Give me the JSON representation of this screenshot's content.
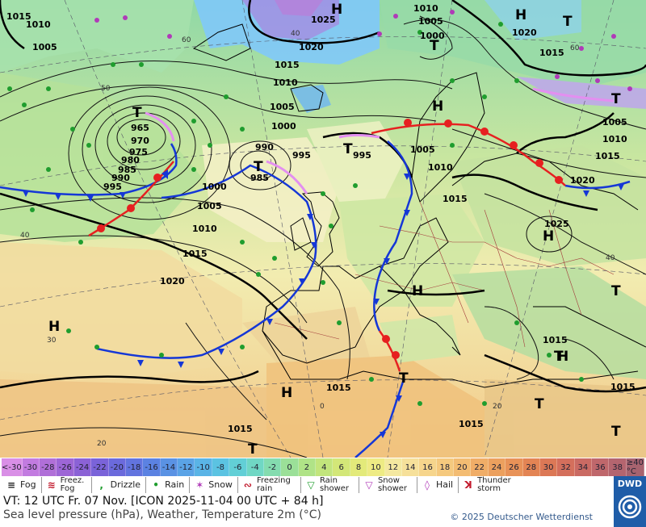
{
  "map": {
    "pressure_labels": [
      "1015",
      "1010",
      "1005",
      "1025",
      "1020",
      "1010",
      "1005",
      "1000",
      "1015",
      "1010",
      "1005",
      "1000",
      "995",
      "965",
      "970",
      "975",
      "980",
      "985",
      "990",
      "995",
      "990",
      "985",
      "995",
      "1000",
      "1005",
      "1010",
      "1015",
      "1020",
      "1005",
      "1010",
      "1015",
      "1025",
      "1020",
      "1015",
      "1005",
      "1010",
      "1015",
      "1020",
      "1015",
      "1015",
      "1015",
      "1015",
      "1015"
    ],
    "temp_iso_labels": [
      "60",
      "50",
      "40",
      "30",
      "20",
      "0",
      "20",
      "40",
      "60",
      "40"
    ],
    "highs": [
      "H",
      "H",
      "H",
      "H",
      "H",
      "H",
      "H",
      "H"
    ],
    "lows": [
      "T",
      "T",
      "T",
      "T",
      "T",
      "T",
      "T",
      "T",
      "T",
      "T",
      "T",
      "T"
    ]
  },
  "scale": {
    "values": [
      "<-30",
      "-30",
      "-28",
      "-26",
      "-24",
      "-22",
      "-20",
      "-18",
      "-16",
      "-14",
      "-12",
      "-10",
      "-8",
      "-6",
      "-4",
      "-2",
      "0",
      "2",
      "4",
      "6",
      "8",
      "10",
      "12",
      "14",
      "16",
      "18",
      "20",
      "22",
      "24",
      "26",
      "28",
      "30",
      "32",
      "34",
      "36",
      "38",
      "≥40 °C"
    ],
    "colors": [
      "#d98fe6",
      "#c27be0",
      "#b06fd8",
      "#9d66d6",
      "#8b62d6",
      "#7a63d9",
      "#6b6adc",
      "#6274df",
      "#5b82e2",
      "#5a92e4",
      "#5aa3e6",
      "#5ab4e6",
      "#5bc3e2",
      "#62cfd6",
      "#70d7c4",
      "#84dcaf",
      "#9be098",
      "#b0e387",
      "#c2e57c",
      "#d3e778",
      "#e3ea7a",
      "#eeeb84",
      "#f4e8a0",
      "#f6e09a",
      "#f6d58c",
      "#f5c97e",
      "#f3bc72",
      "#f0ad67",
      "#eca05e",
      "#e89258",
      "#e38454",
      "#dc7856",
      "#d46f5c",
      "#ca6a63",
      "#bf676b",
      "#b4656f",
      "#a7636f"
    ]
  },
  "legend": [
    {
      "icon": "fog-icon",
      "label": "Fog"
    },
    {
      "icon": "freezing-fog-icon",
      "label": "Freez. Fog"
    },
    {
      "icon": "drizzle-icon",
      "label": "Drizzle"
    },
    {
      "icon": "rain-icon",
      "label": "Rain"
    },
    {
      "icon": "snow-icon",
      "label": "Snow"
    },
    {
      "icon": "freezing-rain-icon",
      "label": "Freezing rain"
    },
    {
      "icon": "rain-shower-icon",
      "label": "Rain shower"
    },
    {
      "icon": "snow-shower-icon",
      "label": "Snow shower"
    },
    {
      "icon": "hail-icon",
      "label": "Hail"
    },
    {
      "icon": "thunderstorm-icon",
      "label": "Thunder storm"
    }
  ],
  "footer": {
    "valid_time": "VT: 12 UTC Fr.  07 Nov. [ICON 2025-11-04  00 UTC + 84 h]",
    "subtitle": "Sea level pressure (hPa), Weather, Temperature 2m (°C)",
    "copyright": "© 2025 Deutscher Wetterdienst",
    "logo_text": "DWD"
  }
}
